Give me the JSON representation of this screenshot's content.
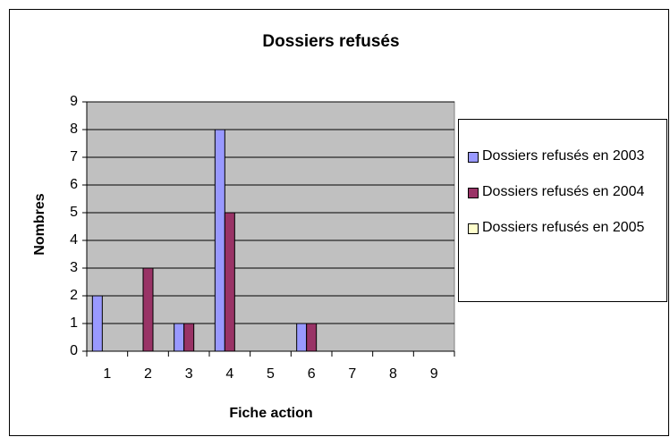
{
  "chart_data": {
    "type": "bar",
    "title": "Dossiers refusés",
    "x_label": "Fiche action",
    "y_label": "Nombres",
    "categories": [
      "1",
      "2",
      "3",
      "4",
      "5",
      "6",
      "7",
      "8",
      "9"
    ],
    "series": [
      {
        "name": "Dossiers refusés en 2003",
        "color": "#9999ff",
        "values": [
          2,
          0,
          1,
          8,
          0,
          1,
          0,
          0,
          0
        ]
      },
      {
        "name": "Dossiers refusés en 2004",
        "color": "#993366",
        "values": [
          0,
          3,
          1,
          5,
          0,
          1,
          0,
          0,
          0
        ]
      },
      {
        "name": "Dossiers refusés en 2005",
        "color": "#ffffcc",
        "values": [
          0,
          0,
          0,
          0,
          0,
          0,
          0,
          0,
          0
        ]
      }
    ],
    "ylim": [
      0,
      9
    ],
    "yticks": [
      0,
      1,
      2,
      3,
      4,
      5,
      6,
      7,
      8,
      9
    ],
    "grid": true,
    "legend": "right"
  }
}
